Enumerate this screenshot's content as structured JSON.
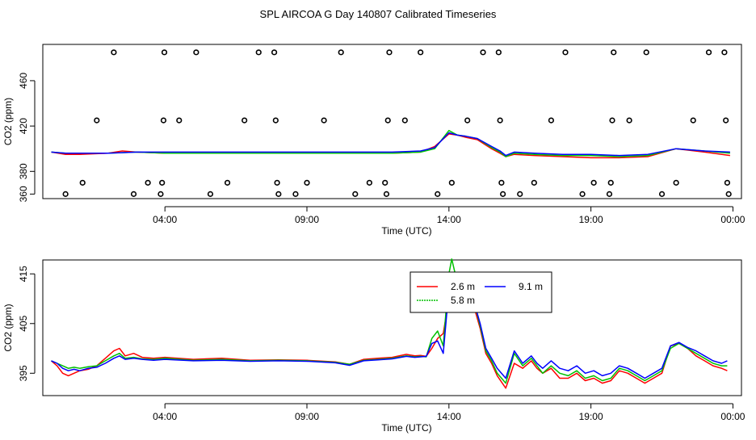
{
  "title": "SPL AIRCOA G  Day 140807  Calibrated Timeseries",
  "chart_data": [
    {
      "type": "line",
      "xlabel": "Time (UTC)",
      "ylabel": "CO2 (ppm)",
      "x_ticks": [
        {
          "label": "04:00",
          "hour": 4
        },
        {
          "label": "09:00",
          "hour": 9
        },
        {
          "label": "14:00",
          "hour": 14
        },
        {
          "label": "19:00",
          "hour": 19
        },
        {
          "label": "00:00",
          "hour": 24
        }
      ],
      "y_ticks": [
        360,
        380,
        420,
        460
      ],
      "xlim": [
        -0.3,
        24.3
      ],
      "ylim": [
        356,
        492
      ],
      "points_color": "#000000",
      "points": [
        {
          "x": 0.5,
          "y": 360
        },
        {
          "x": 1.1,
          "y": 370
        },
        {
          "x": 1.6,
          "y": 425
        },
        {
          "x": 2.2,
          "y": 485
        },
        {
          "x": 2.9,
          "y": 360
        },
        {
          "x": 3.4,
          "y": 370
        },
        {
          "x": 3.85,
          "y": 360
        },
        {
          "x": 3.9,
          "y": 370
        },
        {
          "x": 3.95,
          "y": 425
        },
        {
          "x": 3.98,
          "y": 485
        },
        {
          "x": 4.5,
          "y": 425
        },
        {
          "x": 5.1,
          "y": 485
        },
        {
          "x": 5.6,
          "y": 360
        },
        {
          "x": 6.2,
          "y": 370
        },
        {
          "x": 6.8,
          "y": 425
        },
        {
          "x": 7.3,
          "y": 485
        },
        {
          "x": 7.85,
          "y": 485
        },
        {
          "x": 7.9,
          "y": 425
        },
        {
          "x": 7.95,
          "y": 370
        },
        {
          "x": 8.0,
          "y": 360
        },
        {
          "x": 8.6,
          "y": 360
        },
        {
          "x": 9.0,
          "y": 370
        },
        {
          "x": 9.6,
          "y": 425
        },
        {
          "x": 10.2,
          "y": 485
        },
        {
          "x": 10.7,
          "y": 360
        },
        {
          "x": 11.2,
          "y": 370
        },
        {
          "x": 11.75,
          "y": 370
        },
        {
          "x": 11.8,
          "y": 360
        },
        {
          "x": 11.85,
          "y": 425
        },
        {
          "x": 11.9,
          "y": 485
        },
        {
          "x": 12.45,
          "y": 425
        },
        {
          "x": 13.0,
          "y": 485
        },
        {
          "x": 13.6,
          "y": 360
        },
        {
          "x": 14.1,
          "y": 370
        },
        {
          "x": 14.65,
          "y": 425
        },
        {
          "x": 15.2,
          "y": 485
        },
        {
          "x": 15.75,
          "y": 485
        },
        {
          "x": 15.8,
          "y": 425
        },
        {
          "x": 15.85,
          "y": 370
        },
        {
          "x": 15.9,
          "y": 360
        },
        {
          "x": 16.5,
          "y": 360
        },
        {
          "x": 17.0,
          "y": 370
        },
        {
          "x": 17.6,
          "y": 425
        },
        {
          "x": 18.1,
          "y": 485
        },
        {
          "x": 18.7,
          "y": 360
        },
        {
          "x": 19.1,
          "y": 370
        },
        {
          "x": 19.65,
          "y": 360
        },
        {
          "x": 19.7,
          "y": 370
        },
        {
          "x": 19.75,
          "y": 425
        },
        {
          "x": 19.8,
          "y": 485
        },
        {
          "x": 20.35,
          "y": 425
        },
        {
          "x": 20.95,
          "y": 485
        },
        {
          "x": 21.5,
          "y": 360
        },
        {
          "x": 22.0,
          "y": 370
        },
        {
          "x": 22.6,
          "y": 425
        },
        {
          "x": 23.15,
          "y": 485
        },
        {
          "x": 23.7,
          "y": 485
        },
        {
          "x": 23.75,
          "y": 425
        },
        {
          "x": 23.8,
          "y": 370
        },
        {
          "x": 23.85,
          "y": 360
        }
      ],
      "series": [
        {
          "color": "#ff0000",
          "x": [
            0,
            0.5,
            1,
            2,
            2.5,
            3,
            4,
            6,
            8,
            10,
            12,
            13,
            13.5,
            14,
            14.3,
            14.6,
            15,
            15.5,
            15.8,
            16,
            16.3,
            17,
            18,
            19,
            20,
            21,
            22,
            23,
            23.9
          ],
          "y": [
            397,
            395,
            395,
            396,
            398,
            397,
            396,
            396,
            396,
            396,
            396,
            397,
            402,
            413,
            412,
            410,
            408,
            400,
            396,
            393,
            395,
            394,
            393,
            392,
            392,
            393,
            400,
            397,
            394
          ]
        },
        {
          "color": "#00cc00",
          "x": [
            0,
            0.5,
            1,
            2,
            3,
            4,
            6,
            8,
            10,
            12,
            13,
            13.5,
            14,
            14.3,
            14.6,
            15,
            15.5,
            15.8,
            16,
            16.3,
            17,
            18,
            19,
            20,
            21,
            22,
            23,
            23.9
          ],
          "y": [
            397,
            396,
            396,
            396,
            397,
            396,
            396,
            396,
            396,
            396,
            397,
            400,
            416,
            412,
            411,
            409,
            401,
            397,
            393,
            396,
            395,
            394,
            394,
            393,
            394,
            400,
            398,
            396
          ]
        },
        {
          "color": "#0000ff",
          "x": [
            0,
            0.5,
            1,
            2,
            3,
            4,
            6,
            8,
            10,
            12,
            13,
            13.5,
            14,
            14.3,
            14.6,
            15,
            15.5,
            15.8,
            16,
            16.3,
            17,
            18,
            19,
            20,
            21,
            22,
            23,
            23.9
          ],
          "y": [
            397,
            396,
            396,
            396,
            397,
            397,
            397,
            397,
            397,
            397,
            398,
            401,
            414,
            412,
            411,
            409,
            402,
            398,
            394,
            397,
            396,
            395,
            395,
            394,
            395,
            400,
            398,
            397
          ]
        }
      ]
    },
    {
      "type": "line",
      "xlabel": "Time (UTC)",
      "ylabel": "CO2 (ppm)",
      "x_ticks": [
        {
          "label": "04:00",
          "hour": 4
        },
        {
          "label": "09:00",
          "hour": 9
        },
        {
          "label": "14:00",
          "hour": 14
        },
        {
          "label": "19:00",
          "hour": 19
        },
        {
          "label": "00:00",
          "hour": 24
        }
      ],
      "y_ticks": [
        395,
        405,
        415
      ],
      "xlim": [
        -0.3,
        24.3
      ],
      "ylim": [
        390.5,
        417.8
      ],
      "legend_position": "top-center",
      "series": [
        {
          "name": "2.6 m",
          "color": "#ff0000",
          "x": [
            0,
            0.2,
            0.4,
            0.6,
            0.8,
            1.0,
            1.3,
            1.6,
            1.9,
            2.2,
            2.4,
            2.6,
            2.9,
            3.2,
            3.6,
            4,
            5,
            6,
            7,
            8,
            9,
            10,
            10.5,
            11,
            11.5,
            12,
            12.5,
            12.8,
            13.0,
            13.2,
            13.4,
            13.6,
            13.8,
            14.0,
            14.1,
            14.2,
            14.35,
            14.5,
            14.7,
            14.9,
            15.1,
            15.3,
            15.5,
            15.7,
            16.0,
            16.3,
            16.6,
            16.9,
            17.1,
            17.3,
            17.6,
            17.9,
            18.2,
            18.5,
            18.8,
            19.1,
            19.4,
            19.7,
            20.0,
            20.3,
            20.6,
            20.9,
            21.2,
            21.5,
            21.8,
            22.1,
            22.4,
            22.7,
            23.0,
            23.3,
            23.6,
            23.8
          ],
          "y": [
            397.5,
            396.5,
            395.0,
            394.5,
            395.0,
            395.5,
            395.8,
            396.5,
            398.0,
            399.5,
            400.0,
            398.5,
            399.0,
            398.2,
            398.0,
            398.2,
            397.8,
            398.0,
            397.6,
            397.7,
            397.6,
            397.3,
            396.8,
            397.8,
            398.0,
            398.2,
            398.8,
            398.5,
            398.6,
            398.4,
            400.0,
            402.0,
            403.0,
            410.0,
            413.5,
            414.5,
            412.0,
            411.5,
            410.0,
            408.0,
            404.0,
            399.0,
            397.0,
            394.5,
            392.0,
            397.0,
            396.0,
            397.5,
            396.0,
            395.0,
            396.0,
            394.0,
            394.0,
            395.0,
            393.5,
            394.0,
            393.0,
            393.5,
            395.5,
            395.0,
            394.0,
            393.0,
            394.0,
            395.0,
            400.5,
            401.0,
            400.0,
            398.5,
            397.5,
            396.5,
            396.0,
            395.5
          ]
        },
        {
          "name": "5.8 m",
          "color": "#00c000",
          "x": [
            0,
            0.2,
            0.4,
            0.6,
            0.8,
            1.0,
            1.3,
            1.6,
            1.9,
            2.2,
            2.4,
            2.6,
            2.9,
            3.2,
            3.6,
            4,
            5,
            6,
            7,
            8,
            9,
            10,
            10.5,
            11,
            11.5,
            12,
            12.5,
            12.8,
            13.0,
            13.2,
            13.4,
            13.6,
            13.8,
            14.0,
            14.1,
            14.2,
            14.35,
            14.5,
            14.7,
            14.9,
            15.1,
            15.3,
            15.5,
            15.7,
            16.0,
            16.3,
            16.6,
            16.9,
            17.1,
            17.3,
            17.6,
            17.9,
            18.2,
            18.5,
            18.8,
            19.1,
            19.4,
            19.7,
            20.0,
            20.3,
            20.6,
            20.9,
            21.2,
            21.5,
            21.8,
            22.1,
            22.4,
            22.7,
            23.0,
            23.3,
            23.6,
            23.8
          ],
          "y": [
            397.5,
            397.0,
            396.5,
            396.0,
            396.2,
            396.0,
            396.3,
            396.5,
            397.5,
            398.5,
            399.0,
            398.0,
            398.2,
            397.9,
            397.8,
            398.0,
            397.6,
            397.8,
            397.5,
            397.6,
            397.5,
            397.2,
            396.8,
            397.6,
            397.8,
            398.0,
            398.5,
            398.3,
            398.4,
            398.3,
            402.0,
            403.5,
            400.5,
            415.0,
            418.0,
            415.5,
            414.0,
            413.0,
            411.0,
            409.0,
            404.5,
            399.5,
            397.5,
            395.0,
            393.0,
            399.0,
            396.5,
            398.0,
            396.5,
            395.0,
            396.5,
            395.0,
            394.5,
            395.5,
            394.0,
            394.5,
            393.5,
            394.0,
            396.0,
            395.5,
            394.5,
            393.5,
            394.5,
            395.5,
            400.0,
            401.0,
            400.0,
            399.0,
            398.0,
            397.0,
            396.5,
            396.5
          ]
        },
        {
          "name": "9.1 m",
          "color": "#0000ff",
          "x": [
            0,
            0.2,
            0.4,
            0.6,
            0.8,
            1.0,
            1.3,
            1.6,
            1.9,
            2.2,
            2.4,
            2.6,
            2.9,
            3.2,
            3.6,
            4,
            5,
            6,
            7,
            8,
            9,
            10,
            10.5,
            11,
            11.5,
            12,
            12.5,
            12.8,
            13.0,
            13.2,
            13.4,
            13.6,
            13.8,
            14.0,
            14.1,
            14.2,
            14.35,
            14.5,
            14.7,
            14.9,
            15.1,
            15.3,
            15.5,
            15.7,
            16.0,
            16.3,
            16.6,
            16.9,
            17.1,
            17.3,
            17.6,
            17.9,
            18.2,
            18.5,
            18.8,
            19.1,
            19.4,
            19.7,
            20.0,
            20.3,
            20.6,
            20.9,
            21.2,
            21.5,
            21.8,
            22.1,
            22.4,
            22.7,
            23.0,
            23.3,
            23.6,
            23.8
          ],
          "y": [
            397.5,
            397.0,
            396.0,
            395.5,
            395.8,
            395.5,
            396.0,
            396.2,
            397.0,
            398.0,
            398.5,
            397.8,
            398.0,
            397.8,
            397.6,
            397.8,
            397.5,
            397.6,
            397.4,
            397.5,
            397.4,
            397.1,
            396.6,
            397.5,
            397.7,
            397.9,
            398.4,
            398.2,
            398.3,
            398.4,
            401.0,
            401.5,
            399.0,
            412.0,
            415.0,
            414.5,
            413.0,
            412.0,
            410.5,
            409.0,
            405.0,
            400.0,
            398.0,
            396.0,
            394.0,
            399.5,
            397.0,
            398.5,
            397.0,
            396.0,
            397.5,
            396.0,
            395.5,
            396.5,
            395.0,
            395.5,
            394.5,
            395.0,
            396.5,
            396.0,
            395.0,
            394.0,
            395.0,
            396.0,
            400.5,
            401.2,
            400.2,
            399.5,
            398.5,
            397.5,
            397.0,
            397.5
          ]
        }
      ]
    }
  ]
}
